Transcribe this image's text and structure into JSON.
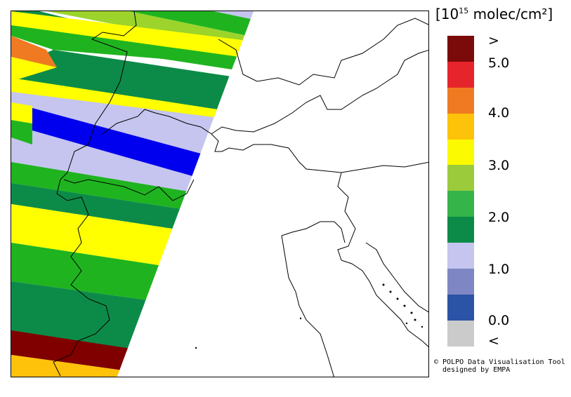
{
  "legend": {
    "unit_open": "[10",
    "unit_exp": "15",
    "unit_close": " molec/cm²]",
    "colors": [
      "#7b0a0a",
      "#e5252b",
      "#f07a21",
      "#fdc20a",
      "#fcfa00",
      "#9bcb3b",
      "#35b44a",
      "#0c8b48",
      "#c6c5ef",
      "#7e87c4",
      "#2b53a6",
      "#cbcbcb"
    ],
    "labels": {
      "gt": ">",
      "v5": "5.0",
      "v4": "4.0",
      "v3": "3.0",
      "v2": "2.0",
      "v1": "1.0",
      "v0": "0.0",
      "lt": "<"
    }
  },
  "credit": {
    "line1": "© POLPO Data Visualisation Tool",
    "line2": "designed by EMPA"
  },
  "map": {
    "swath_colors": {
      "lavender": "#c6c5ef",
      "dark_green": "#0c8b48",
      "green": "#1fb41f",
      "yellow_green": "#9cd42b",
      "yellow": "#ffff00",
      "orange": "#f07a21",
      "blue": "#0000ee",
      "maroon": "#800000",
      "gold": "#ffc20a"
    }
  }
}
